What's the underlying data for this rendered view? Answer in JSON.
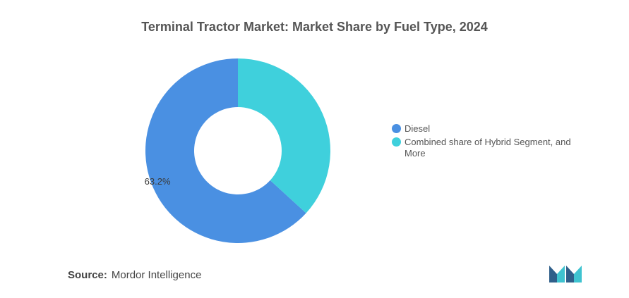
{
  "chart_data": {
    "type": "pie",
    "title": "Terminal Tractor Market: Market Share by Fuel Type, 2024",
    "categories": [
      "Diesel",
      "Combined share of Hybrid Segment, and More"
    ],
    "values": [
      63.2,
      36.8
    ],
    "data_labels": [
      "63.2%",
      ""
    ],
    "colors": [
      "#4a90e2",
      "#3fd0dc"
    ],
    "legend_position": "right",
    "hole": true
  },
  "source": {
    "label": "Source:",
    "text": "Mordor Intelligence"
  },
  "logo": {
    "icon": "mordor-intelligence-logo",
    "colors": [
      "#2f5f8a",
      "#3fc3d0"
    ]
  }
}
